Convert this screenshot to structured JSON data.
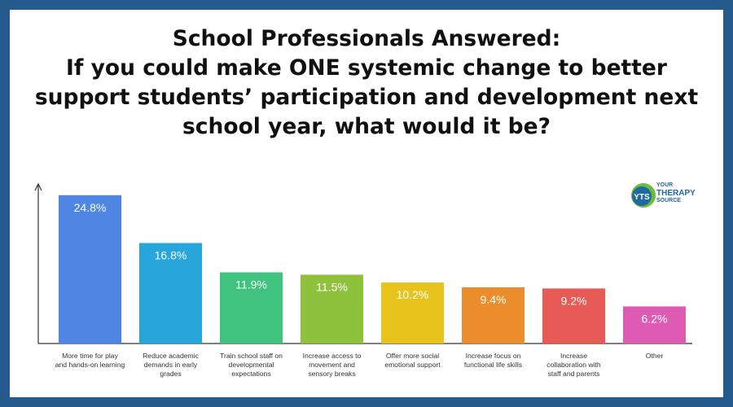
{
  "title_lines": [
    "School Professionals Answered:",
    "If you could make ONE systemic change to better",
    "support students’ participation and development next",
    "school year, what would it be?"
  ],
  "logo": {
    "badge": "YTS",
    "lines": [
      "YOUR",
      "THERAPY",
      "SOURCE"
    ],
    "colors": {
      "ring": "#6abf3a",
      "badge": "#1f6aa0"
    }
  },
  "chart_data": {
    "type": "bar",
    "title": "School Professionals Answered: If you could make ONE systemic change to better support students’ participation and development next school year, what would it be?",
    "xlabel": "",
    "ylabel": "",
    "ylim": [
      0,
      27
    ],
    "grid": false,
    "legend": "none",
    "unit": "%",
    "categories": [
      [
        "More time for play",
        "and hands-on learning"
      ],
      [
        "Reduce academic",
        "demands in early",
        "grades"
      ],
      [
        "Train school staff on",
        "developmental",
        "expectations"
      ],
      [
        "Increase access to",
        "movement and",
        "sensory breaks"
      ],
      [
        "Offer more social",
        "emotional support"
      ],
      [
        "Increase focus on",
        "functional life skills"
      ],
      [
        "Increase",
        "collaboration with",
        "staff and parents"
      ],
      [
        "Other"
      ]
    ],
    "values": [
      24.8,
      16.8,
      11.9,
      11.5,
      10.2,
      9.4,
      9.2,
      6.2
    ],
    "value_labels": [
      "24.8%",
      "16.8%",
      "11.9%",
      "11.5%",
      "10.2%",
      "9.4%",
      "9.2%",
      "6.2%"
    ],
    "colors": [
      "#4f86e3",
      "#27a6dc",
      "#3fc37f",
      "#8fc23c",
      "#e6c41c",
      "#ec8d2b",
      "#e85a55",
      "#de5bb4"
    ]
  }
}
